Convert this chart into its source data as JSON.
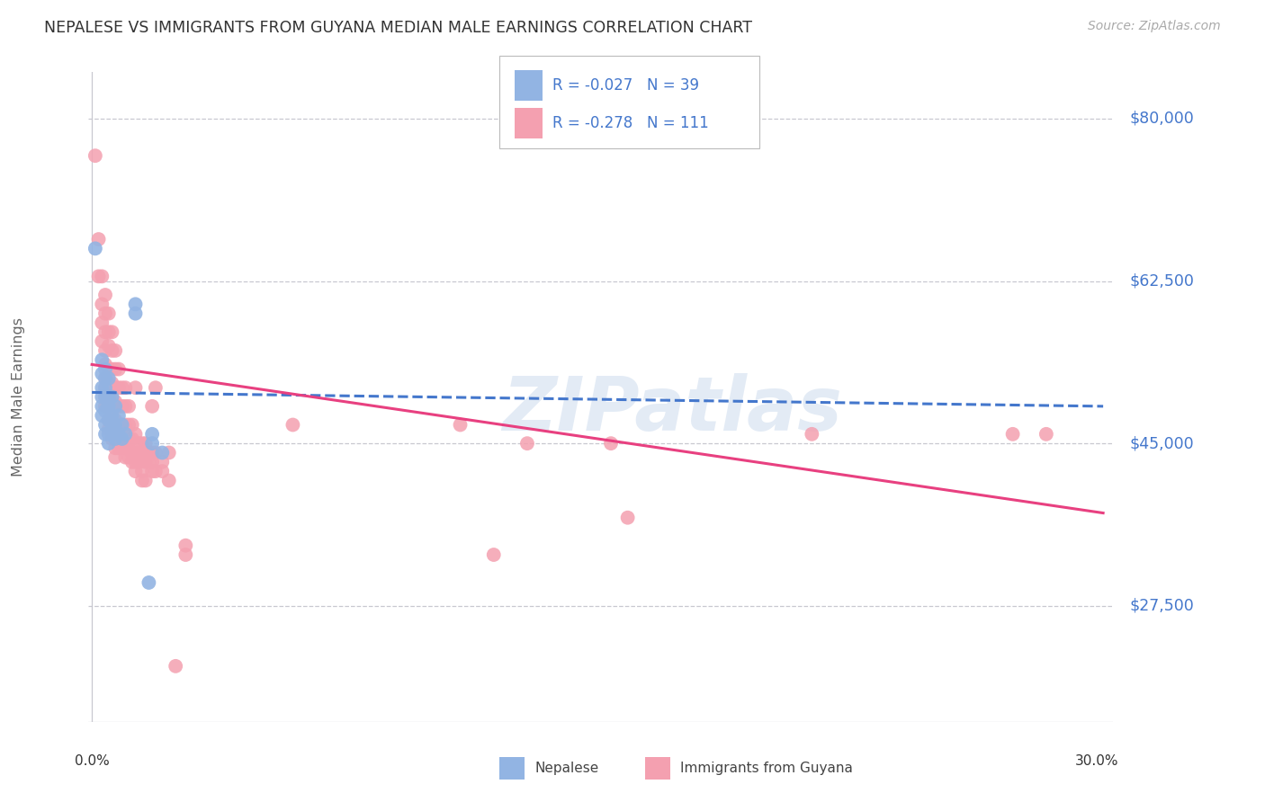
{
  "title": "NEPALESE VS IMMIGRANTS FROM GUYANA MEDIAN MALE EARNINGS CORRELATION CHART",
  "source": "Source: ZipAtlas.com",
  "ylabel": "Median Male Earnings",
  "ytick_labels": [
    "$27,500",
    "$45,000",
    "$62,500",
    "$80,000"
  ],
  "ytick_values": [
    27500,
    45000,
    62500,
    80000
  ],
  "y_min": 15000,
  "y_max": 85000,
  "x_min": -0.001,
  "x_max": 0.305,
  "legend_blue_r": "R = -0.027",
  "legend_blue_n": "N = 39",
  "legend_pink_r": "R = -0.278",
  "legend_pink_n": "N = 111",
  "watermark": "ZIPatlas",
  "blue_color": "#92b4e3",
  "pink_color": "#f4a0b0",
  "trendline_blue_color": "#4477cc",
  "trendline_pink_color": "#e84080",
  "blue_scatter": [
    [
      0.001,
      66000
    ],
    [
      0.003,
      54000
    ],
    [
      0.003,
      52500
    ],
    [
      0.003,
      51000
    ],
    [
      0.003,
      50000
    ],
    [
      0.003,
      49000
    ],
    [
      0.003,
      48000
    ],
    [
      0.004,
      53000
    ],
    [
      0.004,
      52000
    ],
    [
      0.004,
      51000
    ],
    [
      0.004,
      50000
    ],
    [
      0.004,
      48500
    ],
    [
      0.004,
      47000
    ],
    [
      0.004,
      46000
    ],
    [
      0.005,
      52000
    ],
    [
      0.005,
      50000
    ],
    [
      0.005,
      49000
    ],
    [
      0.005,
      47500
    ],
    [
      0.005,
      46000
    ],
    [
      0.005,
      45000
    ],
    [
      0.006,
      50000
    ],
    [
      0.006,
      48000
    ],
    [
      0.006,
      46500
    ],
    [
      0.007,
      49000
    ],
    [
      0.007,
      47000
    ],
    [
      0.007,
      45500
    ],
    [
      0.008,
      48000
    ],
    [
      0.008,
      46000
    ],
    [
      0.009,
      47000
    ],
    [
      0.009,
      45500
    ],
    [
      0.01,
      46000
    ],
    [
      0.013,
      60000
    ],
    [
      0.013,
      59000
    ],
    [
      0.017,
      30000
    ],
    [
      0.018,
      46000
    ],
    [
      0.018,
      45000
    ],
    [
      0.021,
      44000
    ]
  ],
  "pink_scatter": [
    [
      0.001,
      76000
    ],
    [
      0.002,
      67000
    ],
    [
      0.002,
      63000
    ],
    [
      0.003,
      63000
    ],
    [
      0.003,
      60000
    ],
    [
      0.003,
      58000
    ],
    [
      0.003,
      56000
    ],
    [
      0.004,
      61000
    ],
    [
      0.004,
      59000
    ],
    [
      0.004,
      57000
    ],
    [
      0.004,
      55000
    ],
    [
      0.004,
      53500
    ],
    [
      0.004,
      52000
    ],
    [
      0.004,
      51000
    ],
    [
      0.004,
      50000
    ],
    [
      0.004,
      49000
    ],
    [
      0.005,
      59000
    ],
    [
      0.005,
      57000
    ],
    [
      0.005,
      55500
    ],
    [
      0.005,
      53000
    ],
    [
      0.005,
      51500
    ],
    [
      0.005,
      50000
    ],
    [
      0.005,
      49000
    ],
    [
      0.005,
      47500
    ],
    [
      0.005,
      46500
    ],
    [
      0.006,
      57000
    ],
    [
      0.006,
      55000
    ],
    [
      0.006,
      53000
    ],
    [
      0.006,
      51500
    ],
    [
      0.006,
      50000
    ],
    [
      0.006,
      48500
    ],
    [
      0.006,
      47500
    ],
    [
      0.006,
      46500
    ],
    [
      0.006,
      45500
    ],
    [
      0.007,
      55000
    ],
    [
      0.007,
      53000
    ],
    [
      0.007,
      51000
    ],
    [
      0.007,
      49500
    ],
    [
      0.007,
      47500
    ],
    [
      0.007,
      46000
    ],
    [
      0.007,
      44500
    ],
    [
      0.007,
      43500
    ],
    [
      0.008,
      53000
    ],
    [
      0.008,
      51000
    ],
    [
      0.008,
      49000
    ],
    [
      0.008,
      47000
    ],
    [
      0.008,
      45500
    ],
    [
      0.008,
      44500
    ],
    [
      0.009,
      51000
    ],
    [
      0.009,
      49000
    ],
    [
      0.009,
      47000
    ],
    [
      0.009,
      45500
    ],
    [
      0.009,
      44500
    ],
    [
      0.01,
      51000
    ],
    [
      0.01,
      49000
    ],
    [
      0.01,
      47000
    ],
    [
      0.01,
      45500
    ],
    [
      0.01,
      44500
    ],
    [
      0.01,
      43500
    ],
    [
      0.011,
      49000
    ],
    [
      0.011,
      47000
    ],
    [
      0.011,
      45500
    ],
    [
      0.011,
      44500
    ],
    [
      0.011,
      43500
    ],
    [
      0.012,
      47000
    ],
    [
      0.012,
      45500
    ],
    [
      0.012,
      44000
    ],
    [
      0.012,
      43000
    ],
    [
      0.013,
      51000
    ],
    [
      0.013,
      46000
    ],
    [
      0.013,
      44000
    ],
    [
      0.013,
      43000
    ],
    [
      0.013,
      42000
    ],
    [
      0.014,
      45000
    ],
    [
      0.014,
      44000
    ],
    [
      0.014,
      43000
    ],
    [
      0.015,
      45000
    ],
    [
      0.015,
      44000
    ],
    [
      0.015,
      42000
    ],
    [
      0.015,
      41000
    ],
    [
      0.016,
      45000
    ],
    [
      0.016,
      43000
    ],
    [
      0.016,
      41000
    ],
    [
      0.017,
      44000
    ],
    [
      0.017,
      43000
    ],
    [
      0.018,
      49000
    ],
    [
      0.018,
      44000
    ],
    [
      0.018,
      43000
    ],
    [
      0.018,
      42000
    ],
    [
      0.019,
      51000
    ],
    [
      0.019,
      44000
    ],
    [
      0.019,
      42000
    ],
    [
      0.021,
      43000
    ],
    [
      0.021,
      42000
    ],
    [
      0.023,
      44000
    ],
    [
      0.023,
      41000
    ],
    [
      0.025,
      21000
    ],
    [
      0.028,
      34000
    ],
    [
      0.028,
      33000
    ],
    [
      0.06,
      47000
    ],
    [
      0.11,
      47000
    ],
    [
      0.12,
      33000
    ],
    [
      0.13,
      45000
    ],
    [
      0.155,
      45000
    ],
    [
      0.16,
      37000
    ],
    [
      0.215,
      46000
    ],
    [
      0.275,
      46000
    ],
    [
      0.285,
      46000
    ]
  ],
  "blue_trendline_x": [
    0.0,
    0.302
  ],
  "blue_trendline_y": [
    50500,
    49000
  ],
  "pink_trendline_x": [
    0.0,
    0.302
  ],
  "pink_trendline_y": [
    53500,
    37500
  ]
}
